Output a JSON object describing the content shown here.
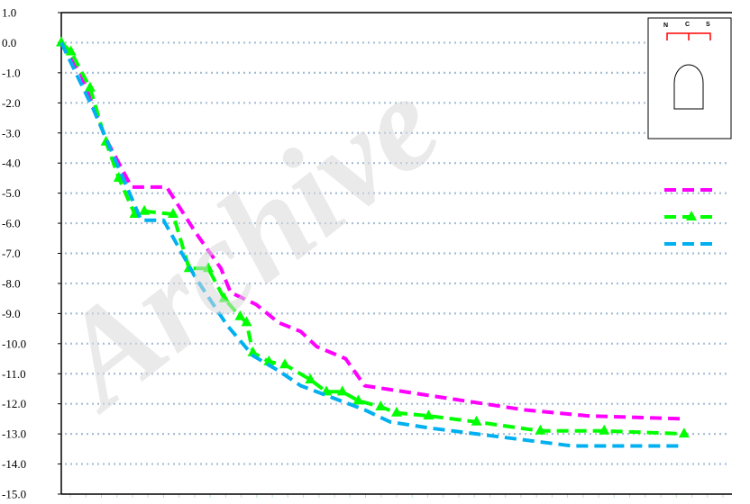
{
  "watermark": {
    "text": "Archive"
  },
  "chart_data": {
    "type": "line",
    "title": "",
    "xlabel": "",
    "ylabel": "",
    "ylim": [
      -15.0,
      1.0
    ],
    "y_ticks": [
      "1.0",
      "0.0",
      "-1.0",
      "-2.0",
      "-3.0",
      "-4.0",
      "-5.0",
      "-6.0",
      "-7.0",
      "-8.0",
      "-9.0",
      "-10.0",
      "-11.0",
      "-12.0",
      "-13.0",
      "-14.0",
      "-15.0"
    ],
    "xlim": [
      0,
      21
    ],
    "grid": true,
    "legend_placement": "right",
    "series": [
      {
        "color": "#ff00ff",
        "marker": "none",
        "x": [
          0,
          0.6,
          1.4,
          2.2,
          2.6,
          3.3,
          4.2,
          5.0,
          5.3,
          6.1,
          6.8,
          7.5,
          8.0,
          8.9,
          9.5,
          14.5,
          16.5,
          19.5
        ],
        "y": [
          0,
          -1.0,
          -3.2,
          -4.8,
          -4.8,
          -4.8,
          -6.3,
          -7.5,
          -8.3,
          -8.7,
          -9.3,
          -9.6,
          -10.1,
          -10.5,
          -11.4,
          -12.2,
          -12.4,
          -12.5
        ]
      },
      {
        "color": "#00ff00",
        "marker": "triangle",
        "x": [
          0,
          0.3,
          0.9,
          1.4,
          1.8,
          2.3,
          2.6,
          3.5,
          4.0,
          4.6,
          5.1,
          5.6,
          5.8,
          6.0,
          6.5,
          7.0,
          7.8,
          8.3,
          8.8,
          9.3,
          10.0,
          10.5,
          11.5,
          13.0,
          15.0,
          17.0,
          19.5
        ],
        "y": [
          0,
          -0.3,
          -1.5,
          -3.3,
          -4.5,
          -5.7,
          -5.6,
          -5.7,
          -7.5,
          -7.5,
          -8.5,
          -9.1,
          -9.3,
          -10.3,
          -10.6,
          -10.7,
          -11.2,
          -11.6,
          -11.6,
          -11.9,
          -12.1,
          -12.3,
          -12.4,
          -12.6,
          -12.9,
          -12.9,
          -13.0
        ]
      },
      {
        "color": "#00b0f0",
        "marker": "none",
        "x": [
          0,
          1.0,
          2.5,
          3.2,
          4.2,
          5.2,
          6.0,
          6.8,
          7.5,
          8.5,
          9.5,
          10.3,
          11.5,
          13.0,
          14.5,
          16.0,
          17.5,
          19.5
        ],
        "y": [
          0,
          -2.2,
          -5.9,
          -5.9,
          -7.8,
          -9.4,
          -10.4,
          -10.9,
          -11.4,
          -11.8,
          -12.2,
          -12.6,
          -12.8,
          -13.0,
          -13.2,
          -13.4,
          -13.4,
          -13.4
        ]
      }
    ]
  },
  "inset": {
    "labels": [
      "N",
      "C",
      "S"
    ]
  }
}
